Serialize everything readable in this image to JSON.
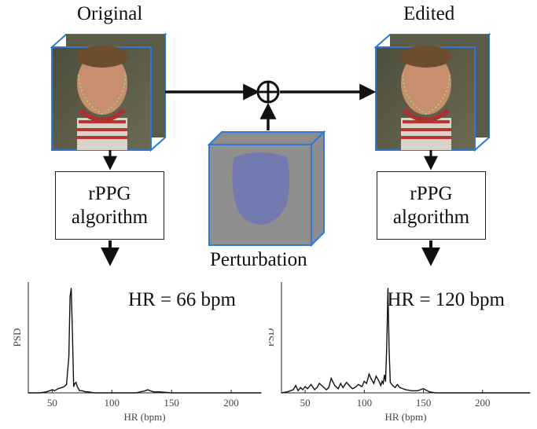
{
  "diagram": {
    "original_label": "Original",
    "edited_label": "Edited",
    "perturbation_label": "Perturbation",
    "algorithm_left": {
      "line1": "rPPG",
      "line2": "algorithm"
    },
    "algorithm_right": {
      "line1": "rPPG",
      "line2": "algorithm"
    },
    "combine_symbol": "⊕"
  },
  "chart_data": [
    {
      "type": "line",
      "annotation": "HR = 66 bpm",
      "xlabel": "HR (bpm)",
      "ylabel": "PSD",
      "xlim": [
        30,
        225
      ],
      "xticks": [
        50,
        100,
        150,
        200
      ],
      "x": [
        30,
        40,
        45,
        48,
        50,
        52,
        55,
        58,
        60,
        62,
        64,
        65,
        66,
        67,
        68,
        69,
        70,
        71,
        72,
        73,
        75,
        78,
        80,
        85,
        90,
        100,
        110,
        120,
        128,
        130,
        132,
        135,
        140,
        150,
        160,
        170,
        180,
        190,
        200,
        210,
        225
      ],
      "y": [
        0.0,
        0.0,
        0.01,
        0.02,
        0.03,
        0.02,
        0.04,
        0.05,
        0.06,
        0.08,
        0.35,
        0.92,
        1.0,
        0.55,
        0.06,
        0.09,
        0.1,
        0.06,
        0.04,
        0.02,
        0.02,
        0.01,
        0.01,
        0.0,
        0.0,
        0.0,
        0.0,
        0.0,
        0.02,
        0.03,
        0.02,
        0.01,
        0.01,
        0.0,
        0.0,
        0.0,
        0.0,
        0.0,
        0.0,
        0.0,
        0.0
      ]
    },
    {
      "type": "line",
      "annotation": "HR = 120 bpm",
      "xlabel": "HR (bpm)",
      "ylabel": "PSD",
      "xlim": [
        30,
        240
      ],
      "xticks": [
        50,
        100,
        150,
        200
      ],
      "x": [
        30,
        35,
        40,
        42,
        44,
        46,
        48,
        50,
        52,
        55,
        58,
        60,
        62,
        65,
        68,
        70,
        72,
        75,
        78,
        80,
        82,
        85,
        88,
        90,
        92,
        95,
        98,
        100,
        102,
        104,
        106,
        108,
        110,
        112,
        114,
        115,
        116,
        117,
        118,
        119,
        120,
        121,
        122,
        124,
        126,
        128,
        130,
        135,
        140,
        145,
        150,
        155,
        160,
        170,
        180,
        200,
        220,
        240
      ],
      "y": [
        0.0,
        0.01,
        0.03,
        0.07,
        0.02,
        0.05,
        0.03,
        0.06,
        0.04,
        0.08,
        0.03,
        0.05,
        0.09,
        0.06,
        0.03,
        0.05,
        0.14,
        0.07,
        0.04,
        0.09,
        0.05,
        0.1,
        0.06,
        0.04,
        0.05,
        0.08,
        0.06,
        0.11,
        0.09,
        0.18,
        0.13,
        0.09,
        0.16,
        0.12,
        0.07,
        0.11,
        0.09,
        0.17,
        0.11,
        0.45,
        1.0,
        0.42,
        0.1,
        0.07,
        0.05,
        0.08,
        0.05,
        0.03,
        0.02,
        0.02,
        0.04,
        0.01,
        0.0,
        0.0,
        0.0,
        0.0,
        0.0,
        0.0
      ]
    }
  ]
}
